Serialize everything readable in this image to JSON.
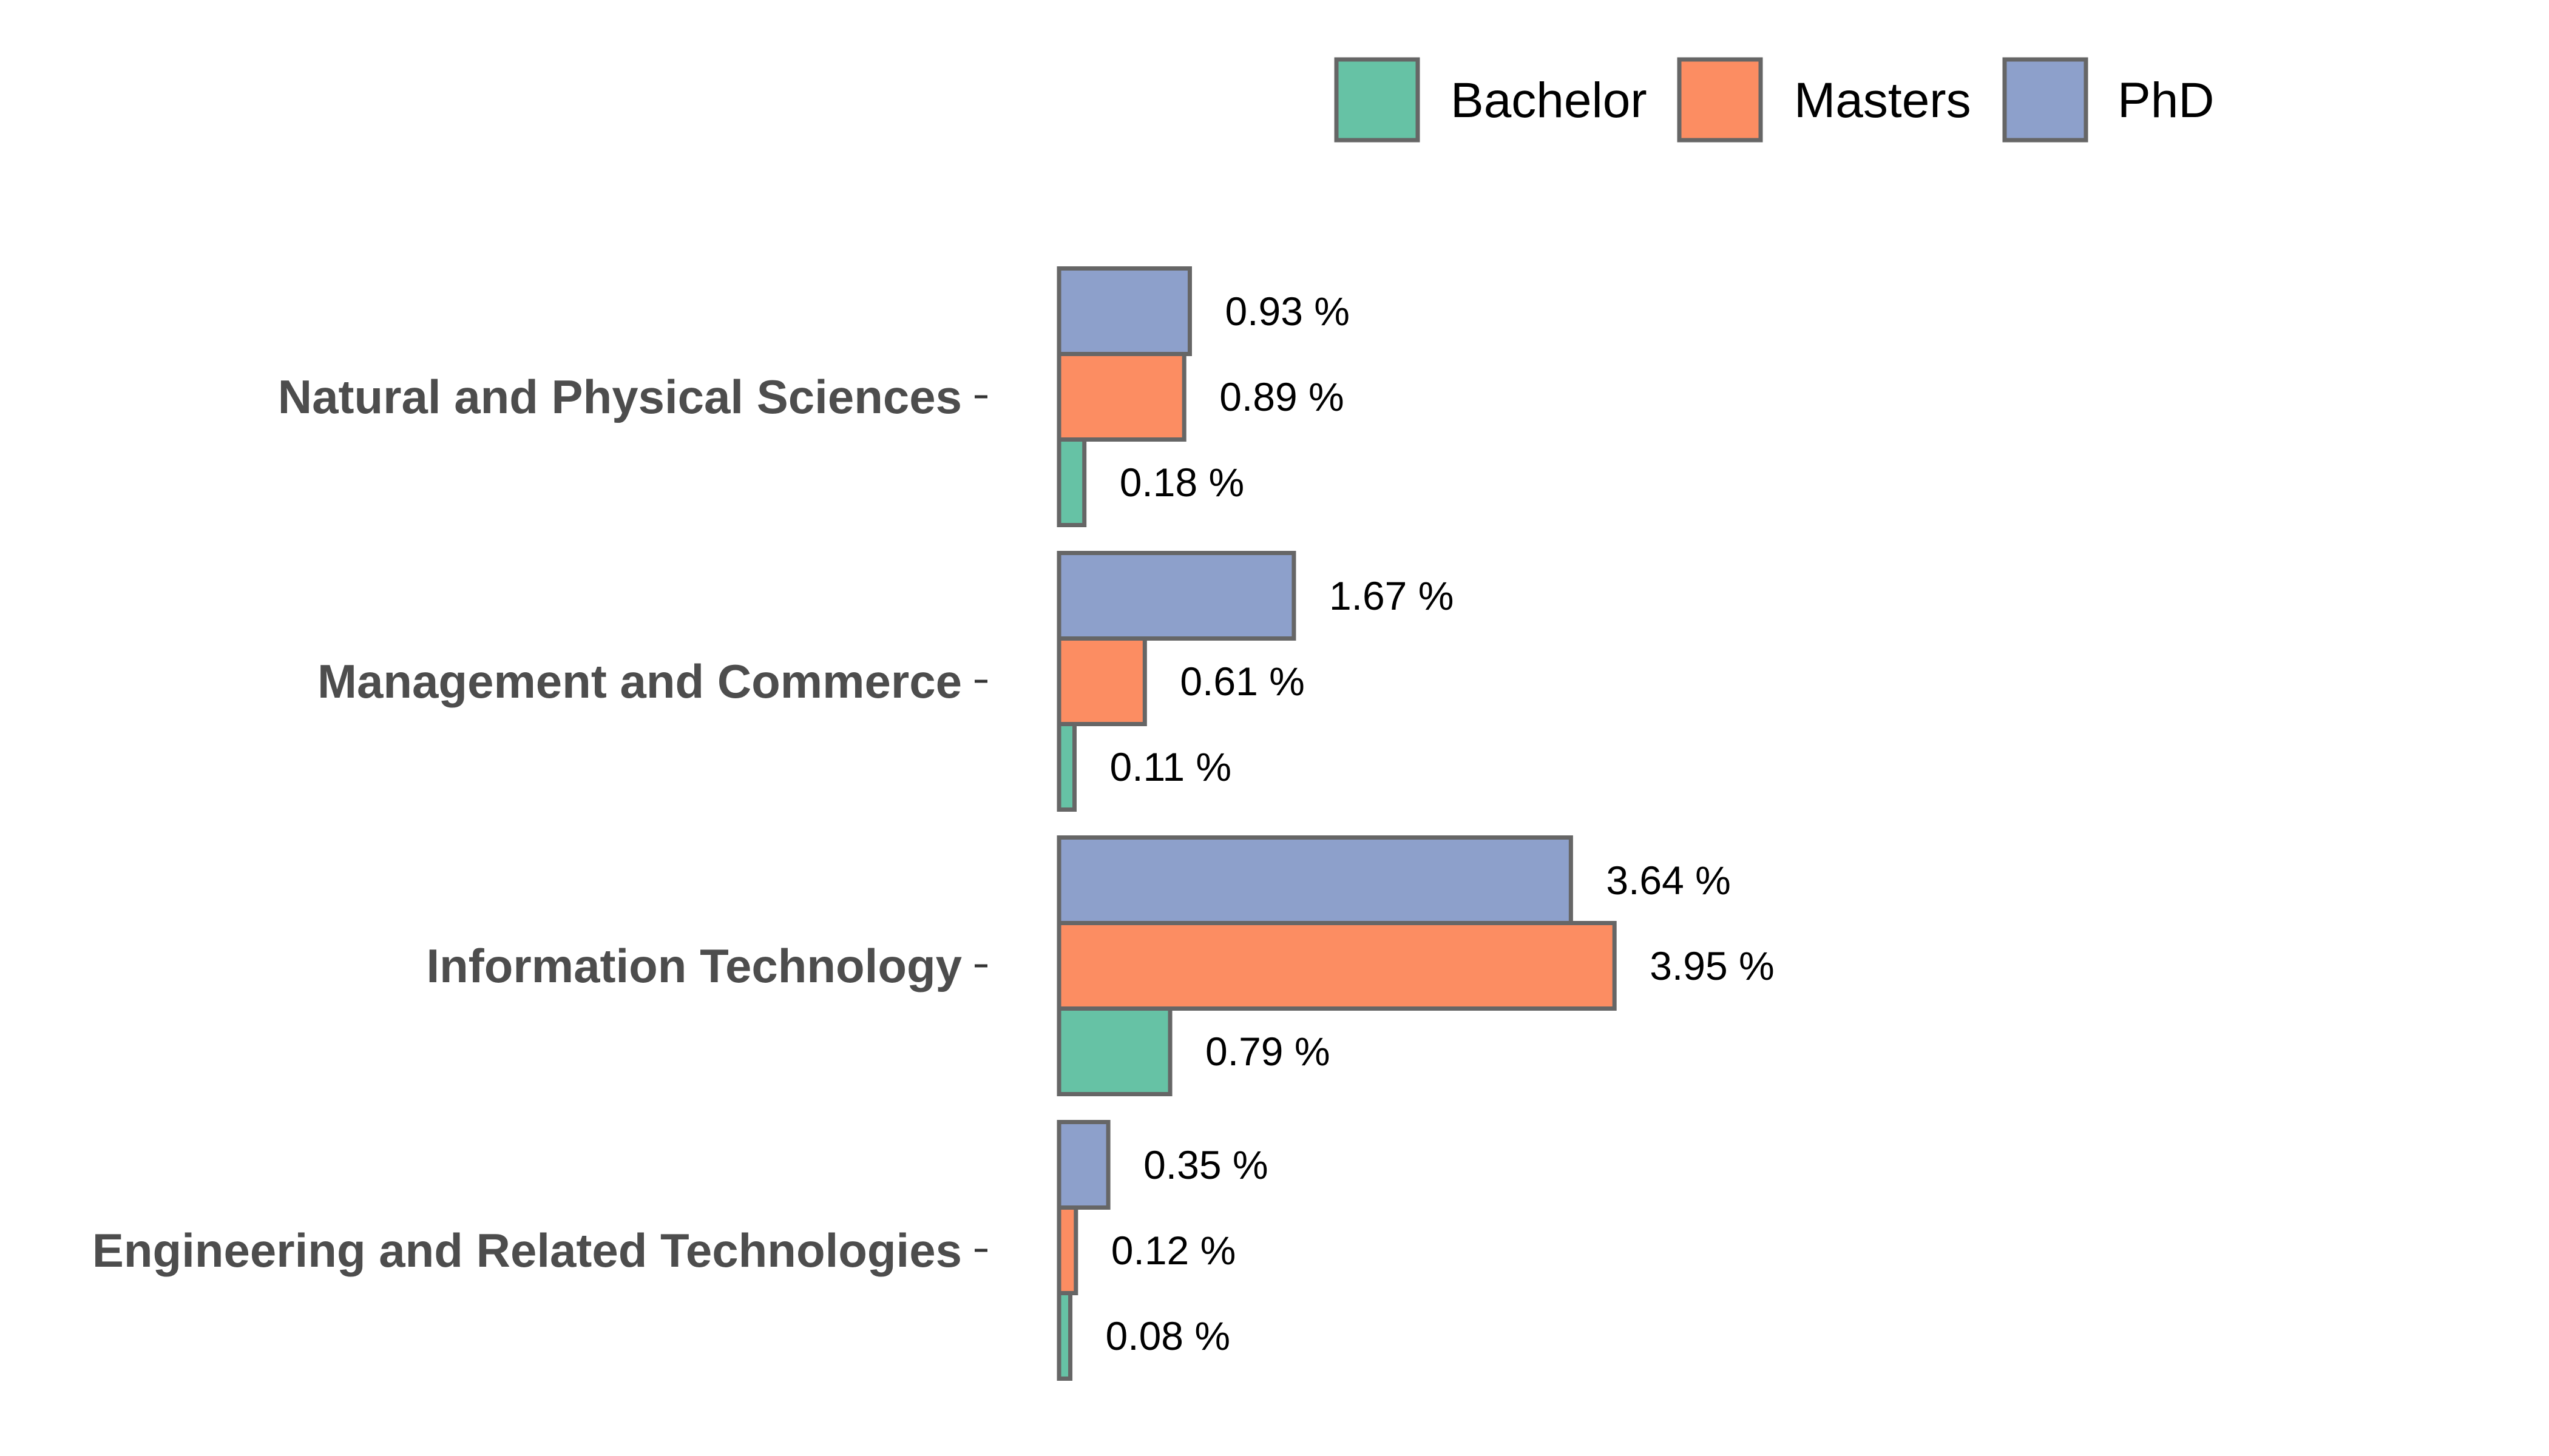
{
  "chart_data": {
    "type": "bar",
    "orientation": "horizontal",
    "title": "",
    "xlabel": "",
    "ylabel": "",
    "categories": [
      "Natural and Physical Sciences",
      "Management and Commerce",
      "Information Technology",
      "Engineering and Related Technologies"
    ],
    "series": [
      {
        "name": "Bachelor",
        "color": "#66c2a5",
        "values": [
          0.18,
          0.11,
          0.79,
          0.08
        ],
        "labels": [
          "0.18 %",
          "0.11 %",
          "0.79 %",
          "0.08 %"
        ]
      },
      {
        "name": "Masters",
        "color": "#fc8d62",
        "values": [
          0.89,
          0.61,
          3.95,
          0.12
        ],
        "labels": [
          "0.89 %",
          "0.61 %",
          "3.95 %",
          "0.12 %"
        ]
      },
      {
        "name": "PhD",
        "color": "#8da0cb",
        "values": [
          0.93,
          1.67,
          3.64,
          0.35
        ],
        "labels": [
          "0.93 %",
          "1.67 %",
          "3.64 %",
          "0.35 %"
        ]
      }
    ],
    "xlim": [
      0,
      4.5
    ],
    "grid": false,
    "legend_position": "top-right",
    "bar_outline_color": "#666666"
  }
}
